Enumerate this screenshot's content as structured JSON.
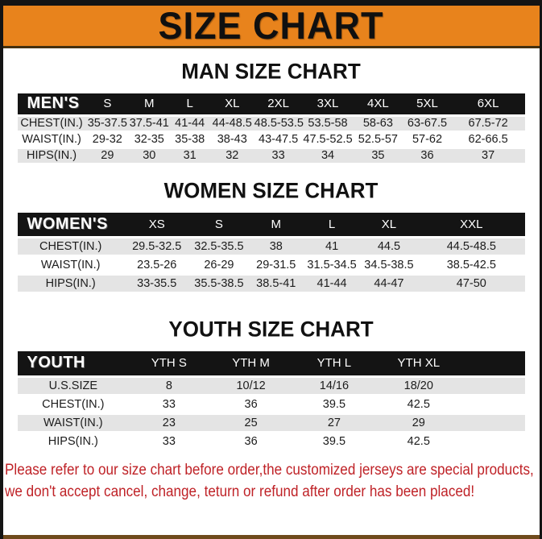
{
  "page": {
    "title": "SIZE CHART",
    "footer_line1": "Please refer to our size chart before order,the customized jerseys are special products,",
    "footer_line2": "we don't accept cancel, change, teturn or refund after order has been placed!"
  },
  "colors": {
    "banner_orange": "#e8831c",
    "header_black": "#141414",
    "row_gray": "#e4e4e4",
    "footer_red": "#bf2227",
    "bottom_strip": "#6f4a1c"
  },
  "tables": [
    {
      "id": "men",
      "section_title": "MAN SIZE CHART",
      "header": [
        "MEN'S",
        "S",
        "M",
        "L",
        "XL",
        "2XL",
        "3XL",
        "4XL",
        "5XL",
        "6XL"
      ],
      "rows": [
        [
          "CHEST(IN.)",
          "35-37.5",
          "37.5-41",
          "41-44",
          "44-48.5",
          "48.5-53.5",
          "53.5-58",
          "58-63",
          "63-67.5",
          "67.5-72"
        ],
        [
          "WAIST(IN.)",
          "29-32",
          "32-35",
          "35-38",
          "38-43",
          "43-47.5",
          "47.5-52.5",
          "52.5-57",
          "57-62",
          "62-66.5"
        ],
        [
          "HIPS(IN.)",
          "29",
          "30",
          "31",
          "32",
          "33",
          "34",
          "35",
          "36",
          "37"
        ]
      ]
    },
    {
      "id": "women",
      "section_title": "WOMEN SIZE CHART",
      "header": [
        "WOMEN'S",
        "XS",
        "S",
        "M",
        "L",
        "XL",
        "XXL"
      ],
      "rows": [
        [
          "CHEST(IN.)",
          "29.5-32.5",
          "32.5-35.5",
          "38",
          "41",
          "44.5",
          "44.5-48.5"
        ],
        [
          "WAIST(IN.)",
          "23.5-26",
          "26-29",
          "29-31.5",
          "31.5-34.5",
          "34.5-38.5",
          "38.5-42.5"
        ],
        [
          "HIPS(IN.)",
          "33-35.5",
          "35.5-38.5",
          "38.5-41",
          "41-44",
          "44-47",
          "47-50"
        ]
      ]
    },
    {
      "id": "youth",
      "section_title": "YOUTH SIZE CHART",
      "header": [
        "YOUTH",
        "YTH S",
        "YTH M",
        "YTH L",
        "YTH XL"
      ],
      "rows": [
        [
          "U.S.SIZE",
          "8",
          "10/12",
          "14/16",
          "18/20"
        ],
        [
          "CHEST(IN.)",
          "33",
          "36",
          "39.5",
          "42.5"
        ],
        [
          "WAIST(IN.)",
          "23",
          "25",
          "27",
          "29"
        ],
        [
          "HIPS(IN.)",
          "33",
          "36",
          "39.5",
          "42.5"
        ]
      ]
    }
  ]
}
